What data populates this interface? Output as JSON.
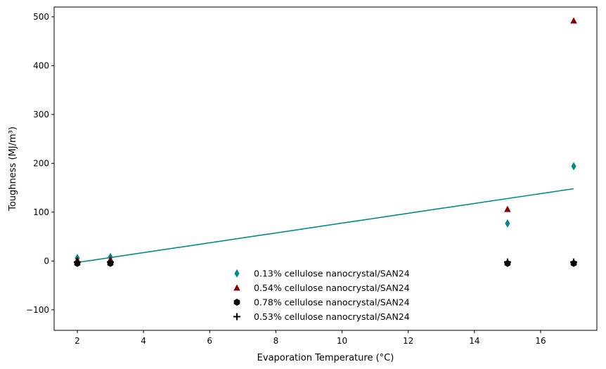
{
  "chart_data": {
    "type": "scatter",
    "title": "",
    "xlabel": "Evaporation Temperature (°C)",
    "ylabel": "Toughness (MJ/m³)",
    "xlim": [
      1.3,
      17.7
    ],
    "ylim": [
      -142,
      520
    ],
    "xticks": [
      2,
      4,
      6,
      8,
      10,
      12,
      14,
      16
    ],
    "yticks": [
      -100,
      0,
      100,
      200,
      300,
      400,
      500
    ],
    "grid": false,
    "legend_position": "lower-center",
    "series": [
      {
        "name": "0.13% cellulose nanocrystal/SAN24",
        "marker": "diamond",
        "color": "#008b8b",
        "x": [
          2,
          3,
          15,
          17
        ],
        "y": [
          6,
          8,
          77,
          194
        ]
      },
      {
        "name": "0.54% cellulose nanocrystal/SAN24",
        "marker": "triangle",
        "color": "#8b0000",
        "x": [
          2,
          3,
          15,
          17
        ],
        "y": [
          2,
          3,
          106,
          492
        ]
      },
      {
        "name": "0.78% cellulose nanocrystal/SAN24",
        "marker": "hexagon",
        "color": "#000000",
        "x": [
          2,
          3,
          15,
          17
        ],
        "y": [
          -5,
          -5,
          -5,
          -5
        ]
      },
      {
        "name": "0.53% cellulose nanocrystal/SAN24",
        "marker": "plus",
        "color": "#000000",
        "x": [
          2,
          3,
          15,
          17
        ],
        "y": [
          -2,
          -2,
          -2,
          -2
        ]
      }
    ],
    "fit_line": {
      "color": "#008b8b",
      "x": [
        2,
        17
      ],
      "y": [
        -3,
        148
      ]
    }
  }
}
